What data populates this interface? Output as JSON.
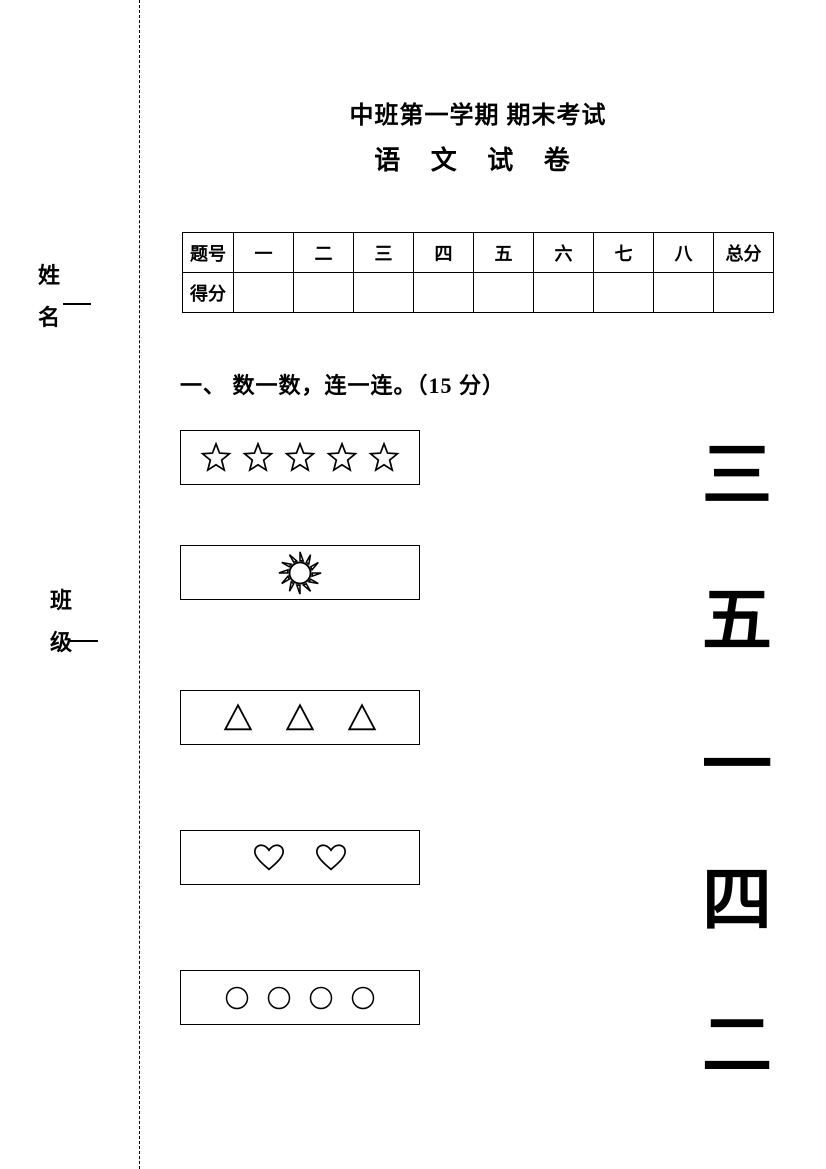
{
  "header": {
    "line1": "中班第一学期 期末考试",
    "line2": "语 文 试 卷"
  },
  "sidebar": {
    "name_label": "姓名",
    "class_label": "班级"
  },
  "score_table": {
    "row_header_question": "题号",
    "row_header_score": "得分",
    "columns": [
      "一",
      "二",
      "三",
      "四",
      "五",
      "六",
      "七",
      "八",
      "总分"
    ]
  },
  "question1": {
    "title": "一、 数一数，连一连。（15 分）",
    "left_boxes": [
      {
        "kind": "star",
        "count": 5
      },
      {
        "kind": "sun",
        "count": 1
      },
      {
        "kind": "triangle",
        "count": 3
      },
      {
        "kind": "heart",
        "count": 2
      },
      {
        "kind": "circle",
        "count": 4
      }
    ],
    "right_answers": [
      "三",
      "五",
      "一",
      "四",
      "二"
    ]
  },
  "styling": {
    "page_bg": "#ffffff",
    "text_color": "#000000",
    "border_width": 1.8,
    "dash_color": "#000000",
    "shape_stroke": "#000000",
    "shape_fill": "none",
    "title_font_size": 24,
    "subtitle_font_size": 26,
    "answer_font_size": 70,
    "answer_font_family": "SimHei",
    "body_font_family": "SimSun",
    "star_size": 34,
    "sun_size": 46,
    "triangle_size": 34,
    "heart_size": 34,
    "circle_size": 28
  }
}
